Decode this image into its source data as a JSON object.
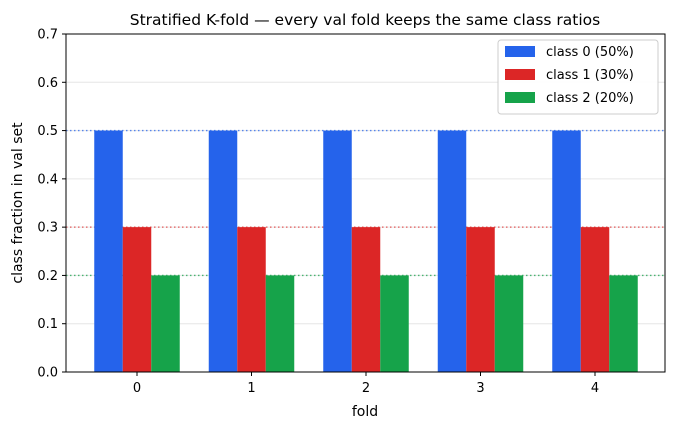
{
  "chart_data": {
    "type": "bar",
    "title": "Stratified K-fold — every val fold keeps the same class ratios",
    "xlabel": "fold",
    "ylabel": "class fraction in val set",
    "categories": [
      "0",
      "1",
      "2",
      "3",
      "4"
    ],
    "series": [
      {
        "name": "class 0 (50%)",
        "values": [
          0.5,
          0.5,
          0.5,
          0.5,
          0.5
        ],
        "color": "#2563eb"
      },
      {
        "name": "class 1 (30%)",
        "values": [
          0.3,
          0.3,
          0.3,
          0.3,
          0.3
        ],
        "color": "#dc2626"
      },
      {
        "name": "class 2 (20%)",
        "values": [
          0.2,
          0.2,
          0.2,
          0.2,
          0.2
        ],
        "color": "#16a34a"
      }
    ],
    "reference_lines": [
      {
        "y": 0.5,
        "color": "#2563eb",
        "style": "dotted"
      },
      {
        "y": 0.3,
        "color": "#dc2626",
        "style": "dotted"
      },
      {
        "y": 0.2,
        "color": "#16a34a",
        "style": "dotted"
      }
    ],
    "ylim": [
      0,
      0.7
    ],
    "yticks": [
      "0.0",
      "0.1",
      "0.2",
      "0.3",
      "0.4",
      "0.5",
      "0.6",
      "0.7"
    ],
    "grid": "horizontal",
    "legend_position": "top-right"
  }
}
